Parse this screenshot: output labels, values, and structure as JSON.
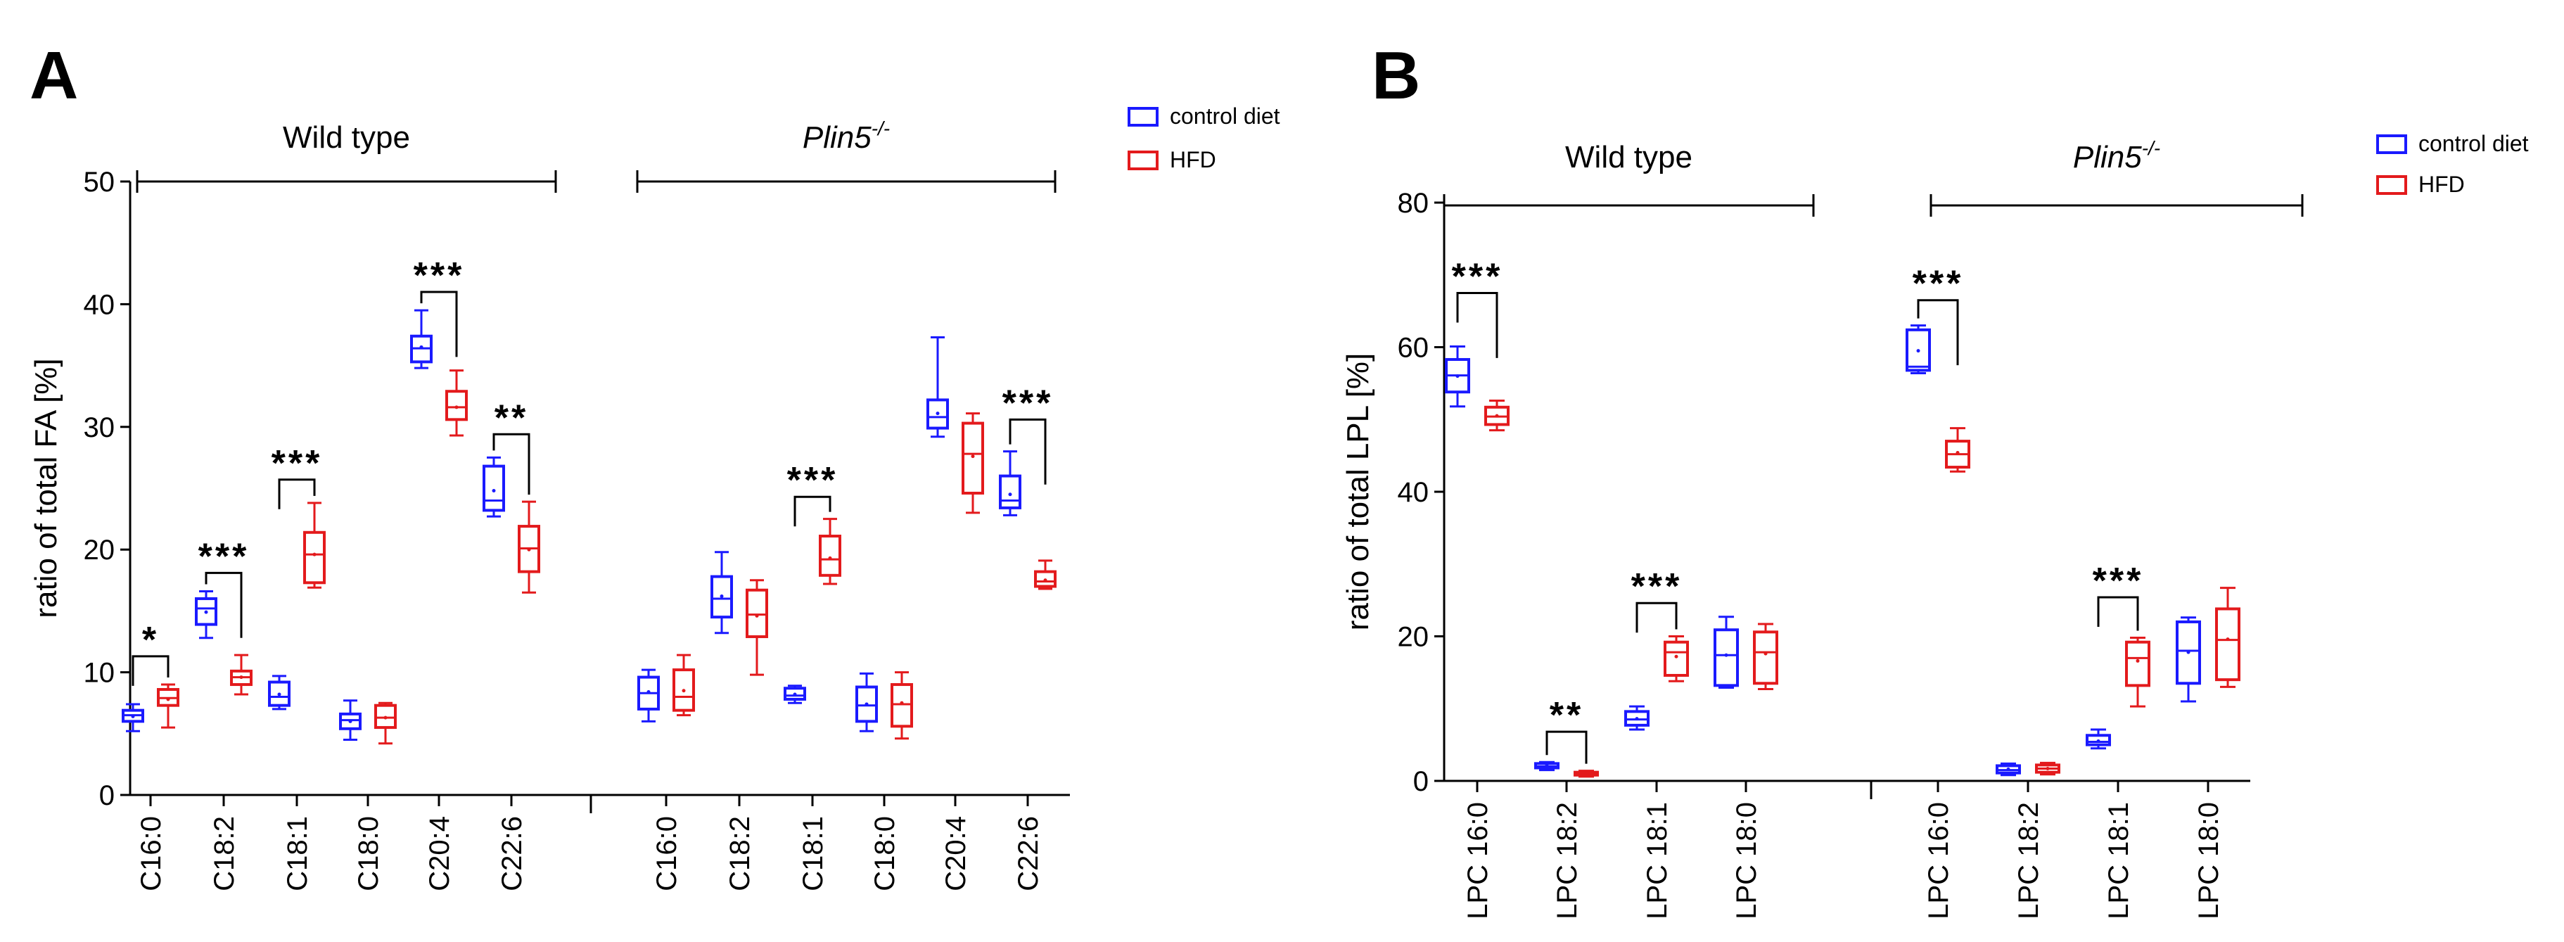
{
  "colors": {
    "control": "#1a1aff",
    "hfd": "#e31a1c",
    "axis": "#000000"
  },
  "chart_data": [
    {
      "type": "box",
      "panel": "A",
      "ylabel": "ratio of total FA [%]",
      "ylim": [
        0,
        50
      ],
      "yticks": [
        0,
        10,
        20,
        30,
        40,
        50
      ],
      "groups": [
        {
          "label": "Wild type",
          "italic": false,
          "superscript": ""
        },
        {
          "label": "Plin5",
          "italic": true,
          "superscript": "-/-"
        }
      ],
      "categories": [
        "C16:0",
        "C18:2",
        "C18:1",
        "C18:0",
        "C20:4",
        "C22:6",
        "C16:0",
        "C18:2",
        "C18:1",
        "C18:0",
        "C20:4",
        "C22:6"
      ],
      "legend": {
        "position": "top-right",
        "entries": [
          "control diet",
          "HFD"
        ]
      },
      "series": [
        {
          "name": "control diet",
          "color": "#1a1aff",
          "boxes": [
            {
              "min": 5.2,
              "q1": 6.0,
              "median": 6.5,
              "q3": 6.9,
              "max": 7.4,
              "mean": 6.4
            },
            {
              "min": 12.8,
              "q1": 13.9,
              "median": 15.2,
              "q3": 16.0,
              "max": 16.6,
              "mean": 14.9
            },
            {
              "min": 7.0,
              "q1": 7.3,
              "median": 8.0,
              "q3": 9.2,
              "max": 9.7,
              "mean": 8.2
            },
            {
              "min": 4.5,
              "q1": 5.4,
              "median": 6.1,
              "q3": 6.6,
              "max": 7.7,
              "mean": 6.0
            },
            {
              "min": 34.8,
              "q1": 35.3,
              "median": 36.4,
              "q3": 37.4,
              "max": 39.5,
              "mean": 36.5
            },
            {
              "min": 22.7,
              "q1": 23.2,
              "median": 24.0,
              "q3": 26.8,
              "max": 27.5,
              "mean": 24.8
            },
            {
              "min": 6.0,
              "q1": 7.0,
              "median": 8.3,
              "q3": 9.6,
              "max": 10.2,
              "mean": 8.4
            },
            {
              "min": 13.2,
              "q1": 14.5,
              "median": 16.0,
              "q3": 17.8,
              "max": 19.8,
              "mean": 16.2
            },
            {
              "min": 7.5,
              "q1": 7.8,
              "median": 8.1,
              "q3": 8.7,
              "max": 8.9,
              "mean": 8.2
            },
            {
              "min": 5.2,
              "q1": 6.0,
              "median": 7.3,
              "q3": 8.8,
              "max": 9.9,
              "mean": 7.4
            },
            {
              "min": 29.2,
              "q1": 29.9,
              "median": 30.8,
              "q3": 32.2,
              "max": 37.3,
              "mean": 31.1
            },
            {
              "min": 22.8,
              "q1": 23.4,
              "median": 24.0,
              "q3": 26.0,
              "max": 28.0,
              "mean": 24.5
            }
          ]
        },
        {
          "name": "HFD",
          "color": "#e31a1c",
          "boxes": [
            {
              "min": 5.5,
              "q1": 7.3,
              "median": 7.9,
              "q3": 8.6,
              "max": 9.0,
              "mean": 7.8
            },
            {
              "min": 8.2,
              "q1": 9.0,
              "median": 9.6,
              "q3": 10.1,
              "max": 11.4,
              "mean": 9.6
            },
            {
              "min": 16.9,
              "q1": 17.3,
              "median": 19.6,
              "q3": 21.4,
              "max": 23.8,
              "mean": 19.6
            },
            {
              "min": 4.2,
              "q1": 5.5,
              "median": 6.3,
              "q3": 7.3,
              "max": 7.5,
              "mean": 6.3
            },
            {
              "min": 29.3,
              "q1": 30.6,
              "median": 31.6,
              "q3": 32.9,
              "max": 34.6,
              "mean": 31.6
            },
            {
              "min": 16.5,
              "q1": 18.2,
              "median": 20.1,
              "q3": 21.9,
              "max": 23.9,
              "mean": 20.0
            },
            {
              "min": 6.5,
              "q1": 6.9,
              "median": 8.0,
              "q3": 10.2,
              "max": 11.4,
              "mean": 8.5
            },
            {
              "min": 9.8,
              "q1": 12.9,
              "median": 14.7,
              "q3": 16.7,
              "max": 17.5,
              "mean": 14.6
            },
            {
              "min": 17.2,
              "q1": 17.9,
              "median": 19.2,
              "q3": 21.1,
              "max": 22.5,
              "mean": 19.3
            },
            {
              "min": 4.6,
              "q1": 5.6,
              "median": 7.4,
              "q3": 9.0,
              "max": 10.0,
              "mean": 7.5
            },
            {
              "min": 23.0,
              "q1": 24.6,
              "median": 27.8,
              "q3": 30.3,
              "max": 31.1,
              "mean": 27.6
            },
            {
              "min": 16.8,
              "q1": 17.0,
              "median": 17.4,
              "q3": 18.2,
              "max": 19.1,
              "mean": 17.5
            }
          ]
        }
      ],
      "significance": [
        {
          "index": 0,
          "label": "*",
          "y": 11.3
        },
        {
          "index": 1,
          "label": "***",
          "y": 18.1
        },
        {
          "index": 2,
          "label": "***",
          "y": 25.7
        },
        {
          "index": 4,
          "label": "***",
          "y": 41.0
        },
        {
          "index": 5,
          "label": "**",
          "y": 29.4
        },
        {
          "index": 8,
          "label": "***",
          "y": 24.3
        },
        {
          "index": 11,
          "label": "***",
          "y": 30.6
        }
      ]
    },
    {
      "type": "box",
      "panel": "B",
      "ylabel": "ratio of total LPL [%]",
      "ylim": [
        0,
        80
      ],
      "yticks": [
        0,
        20,
        40,
        60,
        80
      ],
      "groups": [
        {
          "label": "Wild type",
          "italic": false,
          "superscript": ""
        },
        {
          "label": "Plin5",
          "italic": true,
          "superscript": "-/-"
        }
      ],
      "categories": [
        "LPC 16:0",
        "LPC 18:2",
        "LPC 18:1",
        "LPC 18:0",
        "LPC 16:0",
        "LPC 18:2",
        "LPC 18:1",
        "LPC 18:0"
      ],
      "legend": {
        "position": "top-right",
        "entries": [
          "control diet",
          "HFD"
        ]
      },
      "series": [
        {
          "name": "control diet",
          "color": "#1a1aff",
          "boxes": [
            {
              "min": 51.8,
              "q1": 53.8,
              "median": 56.1,
              "q3": 58.3,
              "max": 60.1,
              "mean": 56.0
            },
            {
              "min": 1.5,
              "q1": 1.8,
              "median": 2.0,
              "q3": 2.4,
              "max": 2.6,
              "mean": 2.1
            },
            {
              "min": 7.1,
              "q1": 7.7,
              "median": 8.5,
              "q3": 9.6,
              "max": 10.3,
              "mean": 8.6
            },
            {
              "min": 12.9,
              "q1": 13.2,
              "median": 17.4,
              "q3": 20.9,
              "max": 22.7,
              "mean": 17.4
            },
            {
              "min": 56.4,
              "q1": 56.8,
              "median": 57.3,
              "q3": 62.4,
              "max": 63.0,
              "mean": 59.5
            },
            {
              "min": 0.8,
              "q1": 1.1,
              "median": 1.5,
              "q3": 2.1,
              "max": 2.4,
              "mean": 1.6
            },
            {
              "min": 4.5,
              "q1": 5.0,
              "median": 5.4,
              "q3": 6.3,
              "max": 7.1,
              "mean": 5.5
            },
            {
              "min": 11.0,
              "q1": 13.5,
              "median": 18.0,
              "q3": 22.0,
              "max": 22.6,
              "mean": 17.8
            }
          ]
        },
        {
          "name": "HFD",
          "color": "#e31a1c",
          "boxes": [
            {
              "min": 48.5,
              "q1": 49.3,
              "median": 50.4,
              "q3": 51.7,
              "max": 52.6,
              "mean": 50.5
            },
            {
              "min": 0.6,
              "q1": 0.8,
              "median": 1.0,
              "q3": 1.2,
              "max": 1.4,
              "mean": 1.0
            },
            {
              "min": 13.8,
              "q1": 14.6,
              "median": 17.8,
              "q3": 19.2,
              "max": 20.0,
              "mean": 17.2
            },
            {
              "min": 12.7,
              "q1": 13.5,
              "median": 17.8,
              "q3": 20.6,
              "max": 21.7,
              "mean": 17.6
            },
            {
              "min": 42.8,
              "q1": 43.4,
              "median": 45.2,
              "q3": 47.0,
              "max": 48.8,
              "mean": 45.4
            },
            {
              "min": 0.9,
              "q1": 1.2,
              "median": 1.7,
              "q3": 2.2,
              "max": 2.5,
              "mean": 1.7
            },
            {
              "min": 10.3,
              "q1": 13.2,
              "median": 17.0,
              "q3": 19.2,
              "max": 19.8,
              "mean": 16.6
            },
            {
              "min": 13.0,
              "q1": 14.0,
              "median": 19.5,
              "q3": 23.8,
              "max": 26.7,
              "mean": 19.6
            }
          ]
        }
      ],
      "significance": [
        {
          "index": 0,
          "label": "***",
          "y": 67.5
        },
        {
          "index": 1,
          "label": "**",
          "y": 6.8
        },
        {
          "index": 2,
          "label": "***",
          "y": 24.6
        },
        {
          "index": 4,
          "label": "***",
          "y": 66.5
        },
        {
          "index": 6,
          "label": "***",
          "y": 25.4
        }
      ]
    }
  ]
}
